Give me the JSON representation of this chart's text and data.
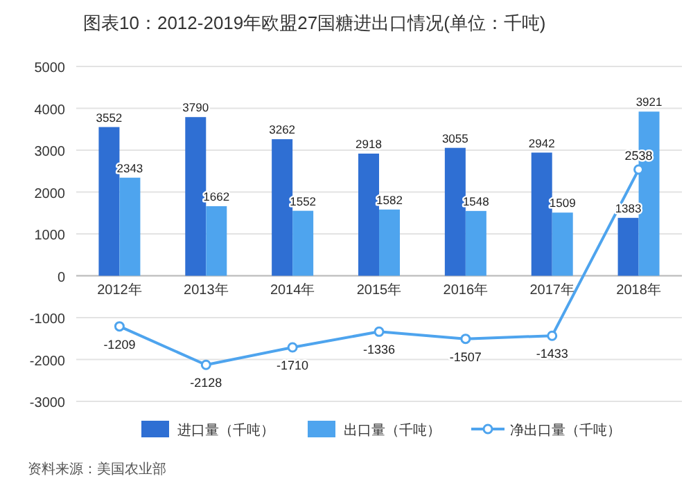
{
  "chart_data": {
    "type": "bar",
    "title": "图表10：2012-2019年欧盟27国糖进出口情况(单位：千吨)",
    "categories": [
      "2012年",
      "2013年",
      "2014年",
      "2015年",
      "2016年",
      "2017年",
      "2018年"
    ],
    "series": [
      {
        "name": "进口量（千吨）",
        "color": "#2f6fd3",
        "values": [
          3552,
          3790,
          3262,
          2918,
          3055,
          2942,
          1383
        ]
      },
      {
        "name": "出口量（千吨）",
        "color": "#4ea4ee",
        "values": [
          2343,
          1662,
          1552,
          1582,
          1548,
          1509,
          3921
        ]
      },
      {
        "name": "净出口量（千吨）",
        "type": "line",
        "color": "#4ea4ee",
        "values": [
          -1209,
          -2128,
          -1710,
          -1336,
          -1507,
          -1433,
          2538
        ]
      }
    ],
    "ylim": [
      -3000,
      5000
    ],
    "yticks": [
      -3000,
      -2000,
      -1000,
      0,
      1000,
      2000,
      3000,
      4000,
      5000
    ],
    "grid": "y",
    "legend": "bottom",
    "marker": "circle",
    "data_labels": true,
    "annotations": [
      "资料来源：美国农业部"
    ]
  }
}
